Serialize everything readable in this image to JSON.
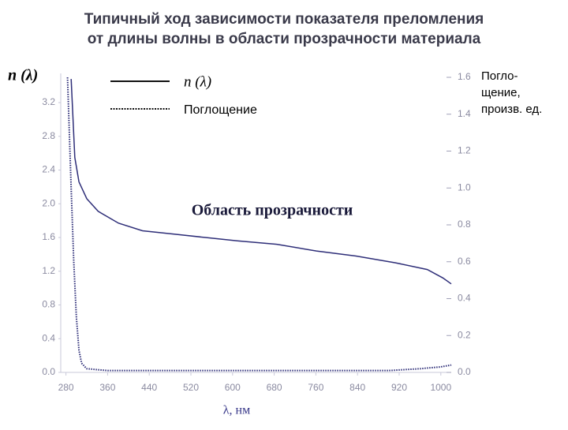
{
  "chart_data": {
    "type": "line",
    "title": [
      "Типичный ход зависимости показателя преломления",
      "от длины волны в области прозрачности материала"
    ],
    "y_label": "n (λ)",
    "y2_label": [
      "Погло-",
      "щение,",
      "произв. ед."
    ],
    "x_label": "λ, нм",
    "annotation": "Область прозрачности",
    "xlim": [
      270,
      1020
    ],
    "xticks": [
      280,
      360,
      440,
      520,
      600,
      680,
      760,
      840,
      920,
      1000
    ],
    "ylim": [
      0,
      3.5
    ],
    "yticks": [
      {
        "value": 0,
        "label": "0.0"
      },
      0.4,
      0.8,
      1.2,
      1.6,
      {
        "value": 2,
        "label": "2.0"
      },
      2.4,
      2.8,
      3.2
    ],
    "y2lim": [
      0,
      1.6
    ],
    "y2ticks": [
      {
        "value": 0,
        "label": "0.0"
      },
      0.2,
      0.4,
      0.6,
      0.8,
      {
        "value": 1,
        "label": "1.0"
      },
      1.2,
      1.4,
      1.6
    ],
    "series": [
      {
        "name": "n (λ)",
        "color": "#2e2e78",
        "style": "solid",
        "x": [
          290,
          297,
          305,
          320,
          342,
          381,
          427,
          488,
          548,
          609,
          685,
          761,
          837,
          913,
          974,
          1004,
          1020
        ],
        "values": [
          3.48,
          2.55,
          2.26,
          2.06,
          1.91,
          1.77,
          1.68,
          1.64,
          1.6,
          1.56,
          1.52,
          1.44,
          1.38,
          1.3,
          1.22,
          1.12,
          1.05
        ]
      },
      {
        "name": "Поглощение",
        "color": "#2e2e78",
        "style": "dotted",
        "axis": "y2",
        "x": [
          283,
          290,
          295,
          300,
          305,
          310,
          320,
          360,
          500,
          700,
          900,
          960,
          1000,
          1020
        ],
        "values": [
          1.6,
          1.0,
          0.6,
          0.3,
          0.12,
          0.05,
          0.02,
          0.01,
          0.01,
          0.01,
          0.01,
          0.02,
          0.03,
          0.04
        ]
      }
    ]
  }
}
